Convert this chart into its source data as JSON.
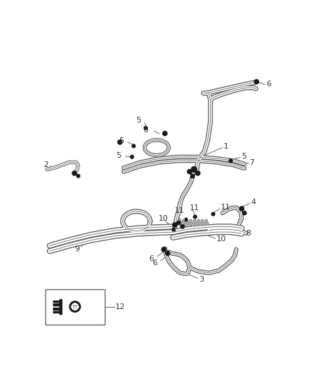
{
  "bg_color": "#ffffff",
  "line_color": "#666666",
  "dark_color": "#1a1a1a",
  "label_color": "#333333",
  "label_fontsize": 8.0,
  "fig_width": 4.38,
  "fig_height": 5.33,
  "dpi": 100,
  "tube_outer_lw": 4.5,
  "tube_inner_lw": 2.5,
  "tube_core_lw": 0.7,
  "label_line_lw": 0.7
}
